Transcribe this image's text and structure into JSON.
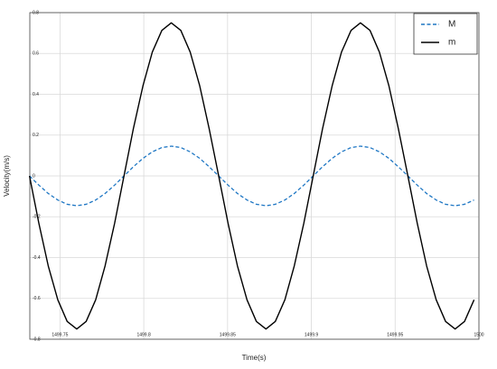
{
  "chart_data": {
    "type": "line",
    "xlabel": "Time(s)",
    "ylabel": "Velocity(m/s)",
    "x": [
      1499.7318,
      1499.7374,
      1499.743,
      1499.7487,
      1499.7543,
      1499.76,
      1499.7656,
      1499.7713,
      1499.7769,
      1499.7826,
      1499.7882,
      1499.7938,
      1499.7995,
      1499.8051,
      1499.8108,
      1499.8164,
      1499.8221,
      1499.8277,
      1499.8334,
      1499.839,
      1499.8447,
      1499.8503,
      1499.8559,
      1499.8616,
      1499.8672,
      1499.8729,
      1499.8785,
      1499.8842,
      1499.8898,
      1499.8955,
      1499.9011,
      1499.9067,
      1499.9124,
      1499.918,
      1499.9237,
      1499.9293,
      1499.935,
      1499.9406,
      1499.9463,
      1499.9519,
      1499.9576,
      1499.9632,
      1499.9688,
      1499.9745,
      1499.9801,
      1499.9858,
      1499.9914,
      1499.9971
    ],
    "series": [
      {
        "name": "M",
        "color": "#1f77c4",
        "dashed": true,
        "values": [
          0,
          -0.045,
          -0.086,
          -0.118,
          -0.139,
          -0.146,
          -0.139,
          -0.118,
          -0.086,
          -0.045,
          0,
          0.045,
          0.086,
          0.118,
          0.139,
          0.146,
          0.139,
          0.118,
          0.086,
          0.045,
          0,
          -0.045,
          -0.086,
          -0.118,
          -0.139,
          -0.146,
          -0.139,
          -0.118,
          -0.086,
          -0.045,
          0,
          0.045,
          0.086,
          0.118,
          0.139,
          0.146,
          0.139,
          0.118,
          0.086,
          0.045,
          0,
          -0.045,
          -0.086,
          -0.118,
          -0.139,
          -0.146,
          -0.139,
          -0.118
        ]
      },
      {
        "name": "m",
        "color": "#000000",
        "dashed": false,
        "values": [
          0,
          -0.232,
          -0.441,
          -0.607,
          -0.713,
          -0.75,
          -0.713,
          -0.607,
          -0.441,
          -0.232,
          0,
          0.232,
          0.441,
          0.607,
          0.713,
          0.75,
          0.713,
          0.607,
          0.441,
          0.232,
          0,
          -0.232,
          -0.441,
          -0.607,
          -0.713,
          -0.75,
          -0.713,
          -0.607,
          -0.441,
          -0.232,
          0,
          0.232,
          0.441,
          0.607,
          0.713,
          0.75,
          0.713,
          0.607,
          0.441,
          0.232,
          0,
          -0.232,
          -0.441,
          -0.607,
          -0.713,
          -0.75,
          -0.713,
          -0.607
        ]
      }
    ],
    "xlim": [
      1499.732,
      1500
    ],
    "xticks": [
      1499.75,
      1499.8,
      1499.85,
      1499.9,
      1499.95,
      1500
    ],
    "ylim": [
      -0.8,
      0.8
    ],
    "yticks": [
      -0.8,
      -0.6,
      -0.4,
      -0.2,
      0,
      0.2,
      0.4,
      0.6,
      0.8
    ],
    "grid": true,
    "legend": "upper right"
  }
}
